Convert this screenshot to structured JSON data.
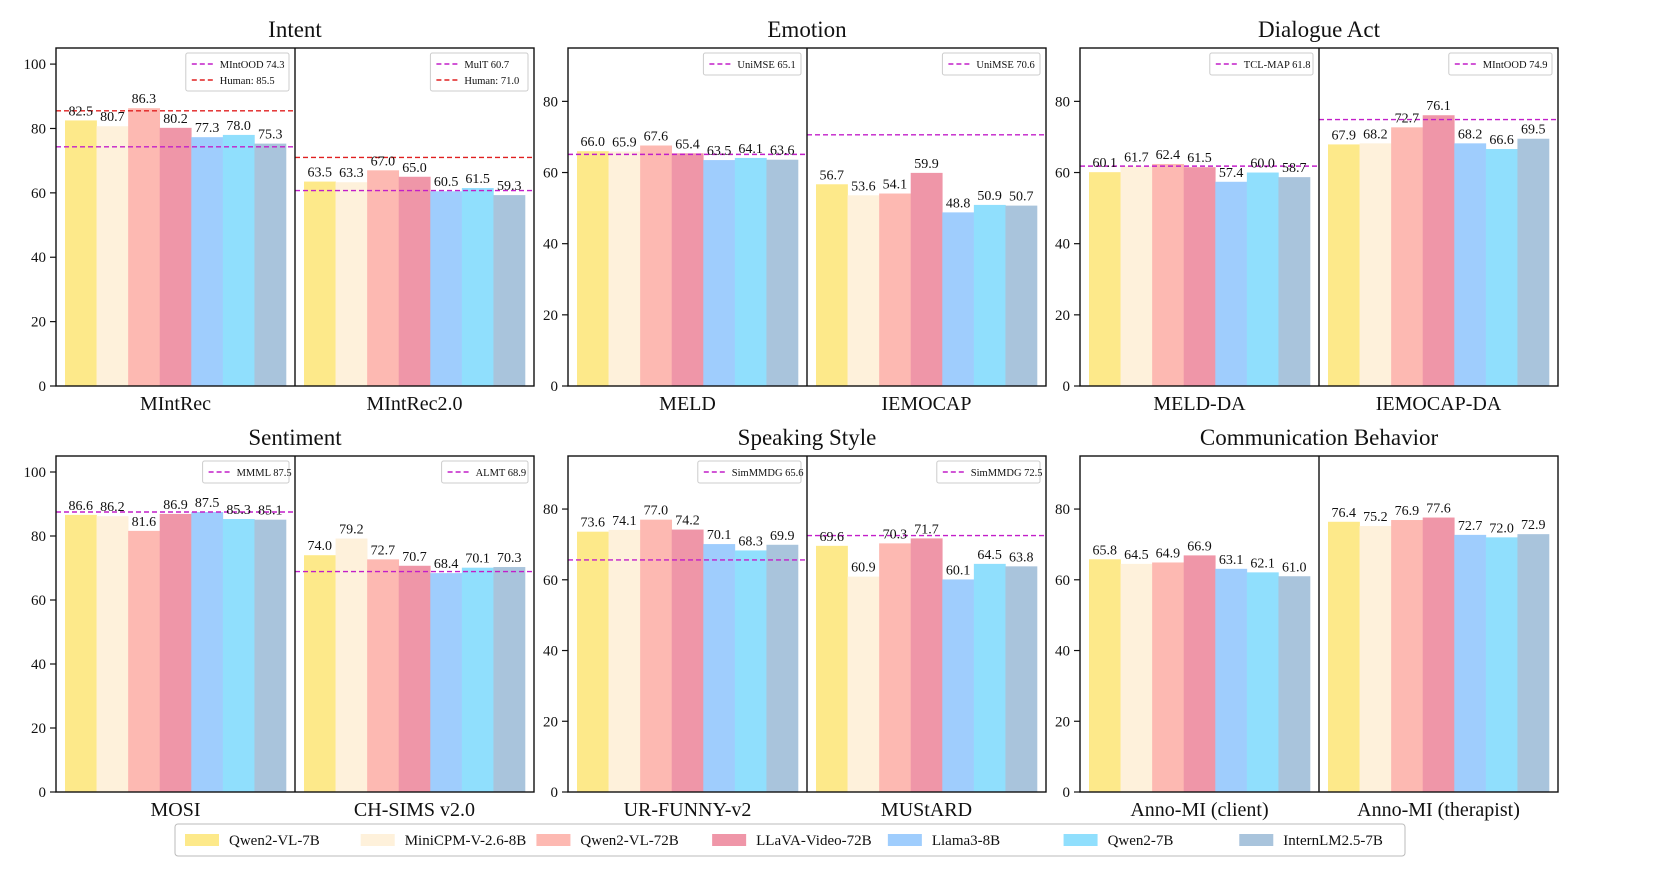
{
  "legend_models": [
    {
      "name": "Qwen2-VL-7B",
      "color": "#FDE98A"
    },
    {
      "name": "MiniCPM-V-2.6-8B",
      "color": "#FEF1DB"
    },
    {
      "name": "Qwen2-VL-72B",
      "color": "#FDB9B2"
    },
    {
      "name": "LLaVA-Video-72B",
      "color": "#EF96A8"
    },
    {
      "name": "Llama3-8B",
      "color": "#9FCDFD"
    },
    {
      "name": "Qwen2-7B",
      "color": "#90DFFD"
    },
    {
      "name": "InternLM2.5-7B",
      "color": "#A9C4DC"
    }
  ],
  "chart_data": [
    {
      "type": "bar",
      "title": "Intent",
      "ylim": [
        0,
        105
      ],
      "yticks": [
        0,
        20,
        40,
        60,
        80,
        100
      ],
      "datasets": [
        {
          "name": "MIntRec",
          "values": [
            82.5,
            80.7,
            86.3,
            80.2,
            77.3,
            78.0,
            75.3
          ],
          "labels": [
            "82.5",
            "80.7",
            "86.3",
            "80.2",
            "77.3",
            "78.0",
            "75.3"
          ],
          "baselines": [
            {
              "label": "MIntOOD 74.3",
              "value": 74.3,
              "color": "#C21FC9"
            },
            {
              "label": "Human: 85.5",
              "value": 85.5,
              "color": "#E02020"
            }
          ]
        },
        {
          "name": "MIntRec2.0",
          "values": [
            63.5,
            63.3,
            67.0,
            65.0,
            60.5,
            61.5,
            59.3
          ],
          "labels": [
            "63.5",
            "63.3",
            "67.0",
            "65.0",
            "60.5",
            "61.5",
            "59.3"
          ],
          "baselines": [
            {
              "label": "MulT 60.7",
              "value": 60.7,
              "color": "#C21FC9"
            },
            {
              "label": "Human: 71.0",
              "value": 71.0,
              "color": "#E02020"
            }
          ]
        }
      ]
    },
    {
      "type": "bar",
      "title": "Emotion",
      "ylim": [
        0,
        95
      ],
      "yticks": [
        0,
        20,
        40,
        60,
        80
      ],
      "datasets": [
        {
          "name": "MELD",
          "values": [
            66.0,
            65.9,
            67.6,
            65.4,
            63.5,
            64.1,
            63.6
          ],
          "labels": [
            "66.0",
            "65.9",
            "67.6",
            "65.4",
            "63.5",
            "64.1",
            "63.6"
          ],
          "baselines": [
            {
              "label": "UniMSE 65.1",
              "value": 65.1,
              "color": "#C21FC9"
            }
          ]
        },
        {
          "name": "IEMOCAP",
          "values": [
            56.7,
            53.6,
            54.1,
            59.9,
            48.8,
            50.9,
            50.7
          ],
          "labels": [
            "56.7",
            "53.6",
            "54.1",
            "59.9",
            "48.8",
            "50.9",
            "50.7"
          ],
          "baselines": [
            {
              "label": "UniMSE 70.6",
              "value": 70.6,
              "color": "#C21FC9"
            }
          ]
        }
      ]
    },
    {
      "type": "bar",
      "title": "Dialogue Act",
      "ylim": [
        0,
        95
      ],
      "yticks": [
        0,
        20,
        40,
        60,
        80
      ],
      "datasets": [
        {
          "name": "MELD-DA",
          "values": [
            60.1,
            61.7,
            62.4,
            61.5,
            57.4,
            60.0,
            58.7
          ],
          "labels": [
            "60.1",
            "61.7",
            "62.4",
            "61.5",
            "57.4",
            "60.0",
            "58.7"
          ],
          "baselines": [
            {
              "label": "TCL-MAP 61.8",
              "value": 61.8,
              "color": "#C21FC9"
            }
          ]
        },
        {
          "name": "IEMOCAP-DA",
          "values": [
            67.9,
            68.2,
            72.7,
            76.1,
            68.2,
            66.6,
            69.5
          ],
          "labels": [
            "67.9",
            "68.2",
            "72.7",
            "76.1",
            "68.2",
            "66.6",
            "69.5"
          ],
          "baselines": [
            {
              "label": "MIntOOD 74.9",
              "value": 74.9,
              "color": "#C21FC9"
            }
          ]
        }
      ]
    },
    {
      "type": "bar",
      "title": "Sentiment",
      "ylim": [
        0,
        105
      ],
      "yticks": [
        0,
        20,
        40,
        60,
        80,
        100
      ],
      "datasets": [
        {
          "name": "MOSI",
          "values": [
            86.6,
            86.2,
            81.6,
            86.9,
            87.5,
            85.3,
            85.1
          ],
          "labels": [
            "86.6",
            "86.2",
            "81.6",
            "86.9",
            "87.5",
            "85.3",
            "85.1"
          ],
          "baselines": [
            {
              "label": "MMML 87.5",
              "value": 87.5,
              "color": "#C21FC9"
            }
          ]
        },
        {
          "name": "CH-SIMS v2.0",
          "values": [
            74.0,
            79.2,
            72.7,
            70.7,
            68.4,
            70.1,
            70.3
          ],
          "labels": [
            "74.0",
            "79.2",
            "72.7",
            "70.7",
            "68.4",
            "70.1",
            "70.3"
          ],
          "baselines": [
            {
              "label": "ALMT 68.9",
              "value": 68.9,
              "color": "#C21FC9"
            }
          ]
        }
      ]
    },
    {
      "type": "bar",
      "title": "Speaking Style",
      "ylim": [
        0,
        95
      ],
      "yticks": [
        0,
        20,
        40,
        60,
        80
      ],
      "datasets": [
        {
          "name": "UR-FUNNY-v2",
          "values": [
            73.6,
            74.1,
            77.0,
            74.2,
            70.1,
            68.3,
            69.9
          ],
          "labels": [
            "73.6",
            "74.1",
            "77.0",
            "74.2",
            "70.1",
            "68.3",
            "69.9"
          ],
          "baselines": [
            {
              "label": "SimMMDG 65.6",
              "value": 65.6,
              "color": "#C21FC9"
            }
          ]
        },
        {
          "name": "MUStARD",
          "values": [
            69.6,
            60.9,
            70.3,
            71.7,
            60.1,
            64.5,
            63.8
          ],
          "labels": [
            "69.6",
            "60.9",
            "70.3",
            "71.7",
            "60.1",
            "64.5",
            "63.8"
          ],
          "baselines": [
            {
              "label": "SimMMDG 72.5",
              "value": 72.5,
              "color": "#C21FC9"
            }
          ]
        }
      ]
    },
    {
      "type": "bar",
      "title": "Communication Behavior",
      "ylim": [
        0,
        95
      ],
      "yticks": [
        0,
        20,
        40,
        60,
        80
      ],
      "datasets": [
        {
          "name": "Anno-MI (client)",
          "values": [
            65.8,
            64.5,
            64.9,
            66.9,
            63.1,
            62.1,
            61.0
          ],
          "labels": [
            "65.8",
            "64.5",
            "64.9",
            "66.9",
            "63.1",
            "62.1",
            "61.0"
          ],
          "baselines": []
        },
        {
          "name": "Anno-MI (therapist)",
          "values": [
            76.4,
            75.2,
            76.9,
            77.6,
            72.7,
            72.0,
            72.9
          ],
          "labels": [
            "76.4",
            "75.2",
            "76.9",
            "77.6",
            "72.7",
            "72.0",
            "72.9"
          ],
          "baselines": []
        }
      ]
    }
  ]
}
